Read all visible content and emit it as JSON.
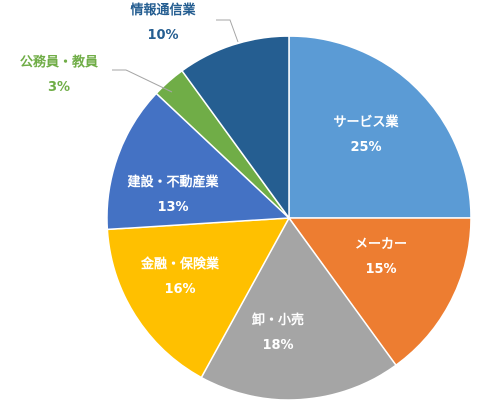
{
  "chart_data": {
    "type": "pie",
    "title": "",
    "slices": [
      {
        "label": "サービス業",
        "value": 25,
        "value_label": "25%",
        "color": "#5B9BD5",
        "label_color": "#ffffff"
      },
      {
        "label": "メーカー",
        "value": 15,
        "value_label": "15%",
        "color": "#ED7D31",
        "label_color": "#ffffff"
      },
      {
        "label": "卸・小売",
        "value": 18,
        "value_label": "18%",
        "color": "#A5A5A5",
        "label_color": "#ffffff"
      },
      {
        "label": "金融・保険業",
        "value": 16,
        "value_label": "16%",
        "color": "#FFC000",
        "label_color": "#ffffff"
      },
      {
        "label": "建設・不動産業",
        "value": 13,
        "value_label": "13%",
        "color": "#4472C4",
        "label_color": "#ffffff"
      },
      {
        "label": "公務員・教員",
        "value": 3,
        "value_label": "3%",
        "color": "#70AD47",
        "label_color": "#70AD47"
      },
      {
        "label": "情報通信業",
        "value": 10,
        "value_label": "10%",
        "color": "#255E91",
        "label_color": "#255E91"
      }
    ],
    "start_angle_deg": 0,
    "direction": "clockwise",
    "legend": "none",
    "data_labels": "category-and-percent"
  }
}
